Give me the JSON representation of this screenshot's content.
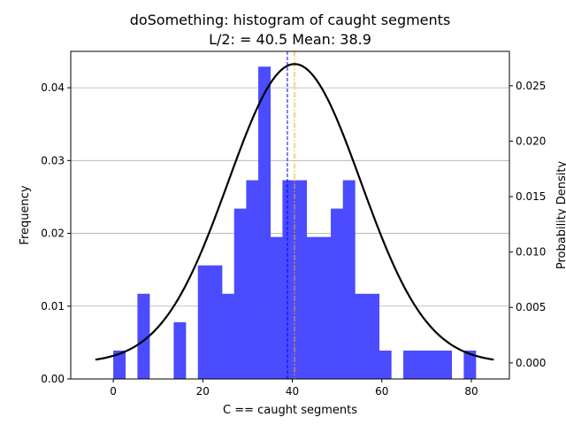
{
  "chart_data": {
    "type": "bar",
    "title_line1": "doSomething: histogram of caught segments",
    "title_line2": "L/2: = 40.5 Mean: 38.9",
    "xlabel": "C == caught segments",
    "ylabel": "Frequency",
    "ylabel_right": "Probability Density",
    "xlim": [
      -9.5,
      88.5
    ],
    "ylim": [
      0,
      0.045
    ],
    "ylim_right": [
      -0.00145,
      0.0281
    ],
    "x_ticks": [
      0,
      20,
      40,
      60,
      80
    ],
    "y_ticks": [
      0.0,
      0.01,
      0.02,
      0.03,
      0.04
    ],
    "y_tick_labels": [
      "0.00",
      "0.01",
      "0.02",
      "0.03",
      "0.04"
    ],
    "y_ticks_right": [
      0.0,
      0.005,
      0.01,
      0.015,
      0.02,
      0.025
    ],
    "y_tick_labels_right": [
      "0.000",
      "0.005",
      "0.010",
      "0.015",
      "0.020",
      "0.025"
    ],
    "grid": "horizontal",
    "bar_color": "#4b4bff",
    "bins": [
      {
        "x0": 0.0,
        "x1": 2.7,
        "value": 0.0039
      },
      {
        "x0": 5.4,
        "x1": 8.1,
        "value": 0.0117
      },
      {
        "x0": 13.5,
        "x1": 16.2,
        "value": 0.0078
      },
      {
        "x0": 18.9,
        "x1": 21.6,
        "value": 0.0156
      },
      {
        "x0": 21.6,
        "x1": 24.3,
        "value": 0.0156
      },
      {
        "x0": 24.3,
        "x1": 27.0,
        "value": 0.0117
      },
      {
        "x0": 27.0,
        "x1": 29.7,
        "value": 0.0234
      },
      {
        "x0": 29.7,
        "x1": 32.4,
        "value": 0.0273
      },
      {
        "x0": 32.4,
        "x1": 35.1,
        "value": 0.0429
      },
      {
        "x0": 35.1,
        "x1": 37.8,
        "value": 0.0195
      },
      {
        "x0": 37.8,
        "x1": 40.5,
        "value": 0.0273
      },
      {
        "x0": 40.5,
        "x1": 43.2,
        "value": 0.0273
      },
      {
        "x0": 43.2,
        "x1": 45.9,
        "value": 0.0195
      },
      {
        "x0": 45.9,
        "x1": 48.6,
        "value": 0.0195
      },
      {
        "x0": 48.6,
        "x1": 51.3,
        "value": 0.0234
      },
      {
        "x0": 51.3,
        "x1": 54.0,
        "value": 0.0273
      },
      {
        "x0": 54.0,
        "x1": 56.7,
        "value": 0.0117
      },
      {
        "x0": 56.7,
        "x1": 59.4,
        "value": 0.0117
      },
      {
        "x0": 59.4,
        "x1": 62.1,
        "value": 0.0039
      },
      {
        "x0": 64.8,
        "x1": 67.5,
        "value": 0.0039
      },
      {
        "x0": 67.5,
        "x1": 70.2,
        "value": 0.0039
      },
      {
        "x0": 70.2,
        "x1": 72.9,
        "value": 0.0039
      },
      {
        "x0": 72.9,
        "x1": 75.6,
        "value": 0.0039
      },
      {
        "x0": 78.3,
        "x1": 81.0,
        "value": 0.0039
      }
    ],
    "density_curve": {
      "color": "#000000",
      "mean": 40.5,
      "sd": 14.8,
      "x_range": [
        -4.0,
        85.0
      ],
      "axis": "right"
    },
    "vlines": [
      {
        "x": 38.9,
        "color": "#0000ff",
        "style": "dashed"
      },
      {
        "x": 40.5,
        "color": "#ffa500",
        "style": "dashdot"
      }
    ]
  }
}
